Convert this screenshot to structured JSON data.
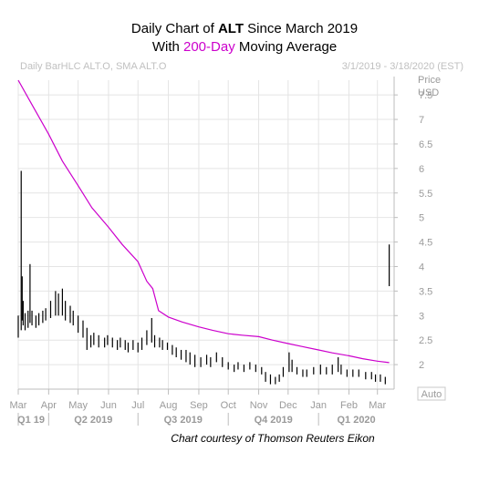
{
  "title": {
    "line1_prefix": "Daily Chart of ",
    "line1_ticker": "ALT",
    "line1_suffix": " Since March 2019",
    "line2_prefix": "With ",
    "line2_highlight": "200-Day",
    "line2_suffix": " Moving Average",
    "highlight_color": "#cc00cc"
  },
  "header": {
    "left": "Daily BarHLC ALT.O, SMA ALT.O",
    "right": "3/1/2019 - 3/18/2020 (EST)"
  },
  "axis": {
    "y_label_line1": "Price",
    "y_label_line2": "USD",
    "auto_label": "Auto"
  },
  "credit": "Chart courtesy of Thomson Reuters Eikon",
  "chart_data": {
    "type": "line",
    "x_range": [
      "2019-03-01",
      "2020-03-18"
    ],
    "ylim": [
      1.5,
      7.8
    ],
    "y_ticks": [
      "2",
      "2.5",
      "3",
      "3.5",
      "4",
      "4.5",
      "5",
      "5.5",
      "6",
      "6.5",
      "7",
      "7.5"
    ],
    "month_ticks": [
      {
        "label": "Mar",
        "date": "2019-03-01"
      },
      {
        "label": "Apr",
        "date": "2019-04-01"
      },
      {
        "label": "May",
        "date": "2019-05-01"
      },
      {
        "label": "Jun",
        "date": "2019-06-01"
      },
      {
        "label": "Jul",
        "date": "2019-07-01"
      },
      {
        "label": "Aug",
        "date": "2019-08-01"
      },
      {
        "label": "Sep",
        "date": "2019-09-01"
      },
      {
        "label": "Oct",
        "date": "2019-10-01"
      },
      {
        "label": "Nov",
        "date": "2019-11-01"
      },
      {
        "label": "Dec",
        "date": "2019-12-01"
      },
      {
        "label": "Jan",
        "date": "2020-01-01"
      },
      {
        "label": "Feb",
        "date": "2020-02-01"
      },
      {
        "label": "Mar",
        "date": "2020-03-01"
      }
    ],
    "quarter_ticks": [
      {
        "label": "Q1 19",
        "date": "2019-03-01"
      },
      {
        "label": "Q2 2019",
        "date": "2019-04-01"
      },
      {
        "label": "Q3 2019",
        "date": "2019-07-01"
      },
      {
        "label": "Q4 2019",
        "date": "2019-10-01"
      },
      {
        "label": "Q1 2020",
        "date": "2020-01-01"
      }
    ],
    "colors": {
      "price": "#000000",
      "sma": "#cc00cc",
      "grid": "#e4e4e4"
    },
    "price_bars": [
      {
        "date": "2019-03-01",
        "high": 3.0,
        "low": 2.55
      },
      {
        "date": "2019-03-04",
        "high": 5.95,
        "low": 2.7
      },
      {
        "date": "2019-03-05",
        "high": 3.8,
        "low": 2.9
      },
      {
        "date": "2019-03-06",
        "high": 3.3,
        "low": 2.8
      },
      {
        "date": "2019-03-08",
        "high": 3.05,
        "low": 2.7
      },
      {
        "date": "2019-03-11",
        "high": 3.1,
        "low": 2.75
      },
      {
        "date": "2019-03-13",
        "high": 4.05,
        "low": 2.85
      },
      {
        "date": "2019-03-15",
        "high": 3.1,
        "low": 2.8
      },
      {
        "date": "2019-03-19",
        "high": 3.0,
        "low": 2.75
      },
      {
        "date": "2019-03-22",
        "high": 3.05,
        "low": 2.8
      },
      {
        "date": "2019-03-26",
        "high": 3.1,
        "low": 2.85
      },
      {
        "date": "2019-03-29",
        "high": 3.15,
        "low": 2.9
      },
      {
        "date": "2019-04-03",
        "high": 3.3,
        "low": 2.95
      },
      {
        "date": "2019-04-08",
        "high": 3.5,
        "low": 3.0
      },
      {
        "date": "2019-04-11",
        "high": 3.45,
        "low": 3.0
      },
      {
        "date": "2019-04-15",
        "high": 3.55,
        "low": 3.0
      },
      {
        "date": "2019-04-18",
        "high": 3.3,
        "low": 2.9
      },
      {
        "date": "2019-04-23",
        "high": 3.2,
        "low": 2.85
      },
      {
        "date": "2019-04-26",
        "high": 3.1,
        "low": 2.8
      },
      {
        "date": "2019-05-01",
        "high": 3.0,
        "low": 2.65
      },
      {
        "date": "2019-05-06",
        "high": 2.9,
        "low": 2.55
      },
      {
        "date": "2019-05-10",
        "high": 2.75,
        "low": 2.3
      },
      {
        "date": "2019-05-14",
        "high": 2.6,
        "low": 2.35
      },
      {
        "date": "2019-05-17",
        "high": 2.65,
        "low": 2.4
      },
      {
        "date": "2019-05-22",
        "high": 2.6,
        "low": 2.35
      },
      {
        "date": "2019-05-28",
        "high": 2.55,
        "low": 2.35
      },
      {
        "date": "2019-05-31",
        "high": 2.6,
        "low": 2.4
      },
      {
        "date": "2019-06-05",
        "high": 2.55,
        "low": 2.35
      },
      {
        "date": "2019-06-10",
        "high": 2.5,
        "low": 2.3
      },
      {
        "date": "2019-06-13",
        "high": 2.55,
        "low": 2.35
      },
      {
        "date": "2019-06-18",
        "high": 2.5,
        "low": 2.3
      },
      {
        "date": "2019-06-21",
        "high": 2.45,
        "low": 2.25
      },
      {
        "date": "2019-06-26",
        "high": 2.5,
        "low": 2.3
      },
      {
        "date": "2019-07-01",
        "high": 2.45,
        "low": 2.25
      },
      {
        "date": "2019-07-05",
        "high": 2.55,
        "low": 2.3
      },
      {
        "date": "2019-07-10",
        "high": 2.7,
        "low": 2.4
      },
      {
        "date": "2019-07-15",
        "high": 2.95,
        "low": 2.45
      },
      {
        "date": "2019-07-18",
        "high": 2.6,
        "low": 2.35
      },
      {
        "date": "2019-07-23",
        "high": 2.55,
        "low": 2.35
      },
      {
        "date": "2019-07-26",
        "high": 2.5,
        "low": 2.3
      },
      {
        "date": "2019-07-31",
        "high": 2.45,
        "low": 2.3
      },
      {
        "date": "2019-08-05",
        "high": 2.4,
        "low": 2.2
      },
      {
        "date": "2019-08-09",
        "high": 2.35,
        "low": 2.15
      },
      {
        "date": "2019-08-14",
        "high": 2.3,
        "low": 2.1
      },
      {
        "date": "2019-08-19",
        "high": 2.3,
        "low": 2.05
      },
      {
        "date": "2019-08-23",
        "high": 2.25,
        "low": 2.0
      },
      {
        "date": "2019-08-28",
        "high": 2.2,
        "low": 1.95
      },
      {
        "date": "2019-09-03",
        "high": 2.15,
        "low": 1.95
      },
      {
        "date": "2019-09-09",
        "high": 2.2,
        "low": 2.0
      },
      {
        "date": "2019-09-13",
        "high": 2.15,
        "low": 1.95
      },
      {
        "date": "2019-09-19",
        "high": 2.25,
        "low": 2.05
      },
      {
        "date": "2019-09-25",
        "high": 2.15,
        "low": 1.95
      },
      {
        "date": "2019-10-01",
        "high": 2.05,
        "low": 1.9
      },
      {
        "date": "2019-10-07",
        "high": 2.0,
        "low": 1.85
      },
      {
        "date": "2019-10-11",
        "high": 2.05,
        "low": 1.9
      },
      {
        "date": "2019-10-17",
        "high": 2.0,
        "low": 1.85
      },
      {
        "date": "2019-10-23",
        "high": 2.05,
        "low": 1.9
      },
      {
        "date": "2019-10-29",
        "high": 2.0,
        "low": 1.85
      },
      {
        "date": "2019-11-04",
        "high": 1.95,
        "low": 1.8
      },
      {
        "date": "2019-11-08",
        "high": 1.85,
        "low": 1.65
      },
      {
        "date": "2019-11-13",
        "high": 1.8,
        "low": 1.6
      },
      {
        "date": "2019-11-18",
        "high": 1.75,
        "low": 1.6
      },
      {
        "date": "2019-11-22",
        "high": 1.8,
        "low": 1.65
      },
      {
        "date": "2019-11-26",
        "high": 1.95,
        "low": 1.75
      },
      {
        "date": "2019-12-02",
        "high": 2.25,
        "low": 1.85
      },
      {
        "date": "2019-12-05",
        "high": 2.1,
        "low": 1.85
      },
      {
        "date": "2019-12-10",
        "high": 1.95,
        "low": 1.8
      },
      {
        "date": "2019-12-16",
        "high": 1.9,
        "low": 1.75
      },
      {
        "date": "2019-12-20",
        "high": 1.9,
        "low": 1.75
      },
      {
        "date": "2019-12-27",
        "high": 1.95,
        "low": 1.8
      },
      {
        "date": "2020-01-03",
        "high": 2.0,
        "low": 1.8
      },
      {
        "date": "2020-01-09",
        "high": 1.95,
        "low": 1.8
      },
      {
        "date": "2020-01-15",
        "high": 2.0,
        "low": 1.8
      },
      {
        "date": "2020-01-21",
        "high": 2.15,
        "low": 1.85
      },
      {
        "date": "2020-01-24",
        "high": 2.0,
        "low": 1.8
      },
      {
        "date": "2020-01-30",
        "high": 1.9,
        "low": 1.75
      },
      {
        "date": "2020-02-05",
        "high": 1.9,
        "low": 1.75
      },
      {
        "date": "2020-02-11",
        "high": 1.9,
        "low": 1.75
      },
      {
        "date": "2020-02-18",
        "high": 1.85,
        "low": 1.7
      },
      {
        "date": "2020-02-24",
        "high": 1.85,
        "low": 1.7
      },
      {
        "date": "2020-02-28",
        "high": 1.8,
        "low": 1.65
      },
      {
        "date": "2020-03-04",
        "high": 1.8,
        "low": 1.65
      },
      {
        "date": "2020-03-09",
        "high": 1.75,
        "low": 1.6
      },
      {
        "date": "2020-03-13",
        "high": 4.45,
        "low": 3.6
      }
    ],
    "sma_200": [
      {
        "date": "2019-03-01",
        "value": 7.8
      },
      {
        "date": "2019-03-15",
        "value": 7.3
      },
      {
        "date": "2019-04-01",
        "value": 6.7
      },
      {
        "date": "2019-04-15",
        "value": 6.15
      },
      {
        "date": "2019-05-01",
        "value": 5.65
      },
      {
        "date": "2019-05-15",
        "value": 5.2
      },
      {
        "date": "2019-06-01",
        "value": 4.8
      },
      {
        "date": "2019-06-15",
        "value": 4.45
      },
      {
        "date": "2019-07-01",
        "value": 4.1
      },
      {
        "date": "2019-07-10",
        "value": 3.7
      },
      {
        "date": "2019-07-16",
        "value": 3.55
      },
      {
        "date": "2019-07-22",
        "value": 3.1
      },
      {
        "date": "2019-08-01",
        "value": 2.97
      },
      {
        "date": "2019-08-15",
        "value": 2.87
      },
      {
        "date": "2019-09-01",
        "value": 2.77
      },
      {
        "date": "2019-09-15",
        "value": 2.7
      },
      {
        "date": "2019-10-01",
        "value": 2.63
      },
      {
        "date": "2019-10-15",
        "value": 2.6
      },
      {
        "date": "2019-11-01",
        "value": 2.57
      },
      {
        "date": "2019-11-15",
        "value": 2.5
      },
      {
        "date": "2019-12-01",
        "value": 2.43
      },
      {
        "date": "2019-12-15",
        "value": 2.37
      },
      {
        "date": "2020-01-01",
        "value": 2.3
      },
      {
        "date": "2020-01-15",
        "value": 2.24
      },
      {
        "date": "2020-02-01",
        "value": 2.18
      },
      {
        "date": "2020-02-15",
        "value": 2.12
      },
      {
        "date": "2020-03-01",
        "value": 2.07
      },
      {
        "date": "2020-03-13",
        "value": 2.04
      }
    ]
  }
}
